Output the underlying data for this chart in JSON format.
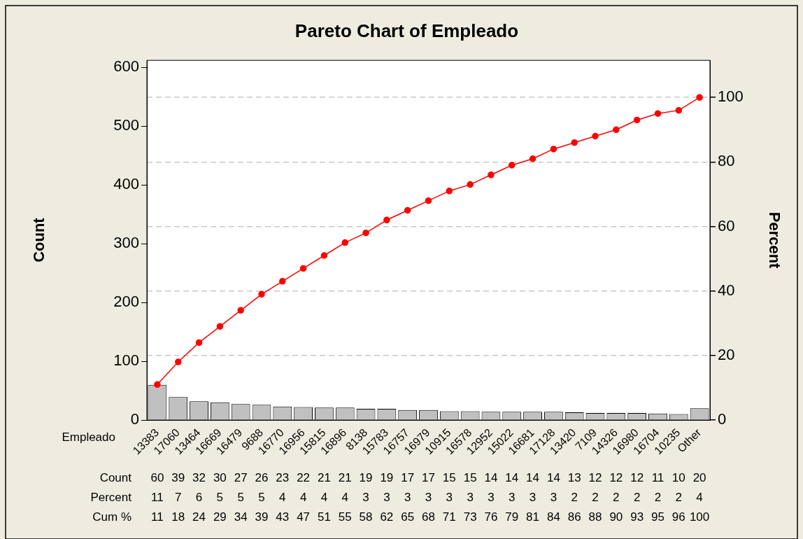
{
  "chart_data": {
    "type": "bar",
    "title": "Pareto Chart of Empleado",
    "xlabel": "Empleado",
    "ylabel": "Count",
    "y2label": "Percent",
    "categories": [
      "13383",
      "17060",
      "13464",
      "16669",
      "16479",
      "9688",
      "16770",
      "16956",
      "15815",
      "16896",
      "8138",
      "15783",
      "16757",
      "16979",
      "10915",
      "16578",
      "12952",
      "15022",
      "16681",
      "17128",
      "13420",
      "7109",
      "14326",
      "16980",
      "16704",
      "10235",
      "Other"
    ],
    "series": [
      {
        "color": "#c0c0c0",
        "values": [
          60,
          39,
          32,
          30,
          27,
          26,
          23,
          22,
          21,
          21,
          19,
          19,
          17,
          17,
          15,
          15,
          14,
          14,
          14,
          14,
          13,
          12,
          12,
          12,
          11,
          10,
          20
        ]
      },
      {
        "type": "line",
        "axis": "y2",
        "color": "#ff0000",
        "values": [
          11,
          18,
          24,
          29,
          34,
          39,
          43,
          47,
          51,
          55,
          58,
          62,
          65,
          68,
          71,
          73,
          76,
          79,
          81,
          84,
          86,
          88,
          90,
          93,
          95,
          96,
          100
        ]
      }
    ],
    "ylim": [
      0,
      612
    ],
    "yticks": [
      0,
      100,
      200,
      300,
      400,
      500,
      600
    ],
    "y2lim": [
      0,
      111.5
    ],
    "y2ticks": [
      0,
      20,
      40,
      60,
      80,
      100
    ],
    "annotations": [
      "Count",
      "Percent",
      "Cum %",
      "11",
      "7",
      "6",
      "5",
      "5",
      "5",
      "4",
      "4",
      "4",
      "4",
      "3",
      "3",
      "3",
      "3",
      "3",
      "3",
      "3",
      "3",
      "3",
      "3",
      "2",
      "2",
      "2",
      "2",
      "2",
      "2",
      "4"
    ],
    "grid": "y",
    "legend": false,
    "marker": "circle",
    "line_style": "solid",
    "data_labels": true
  }
}
